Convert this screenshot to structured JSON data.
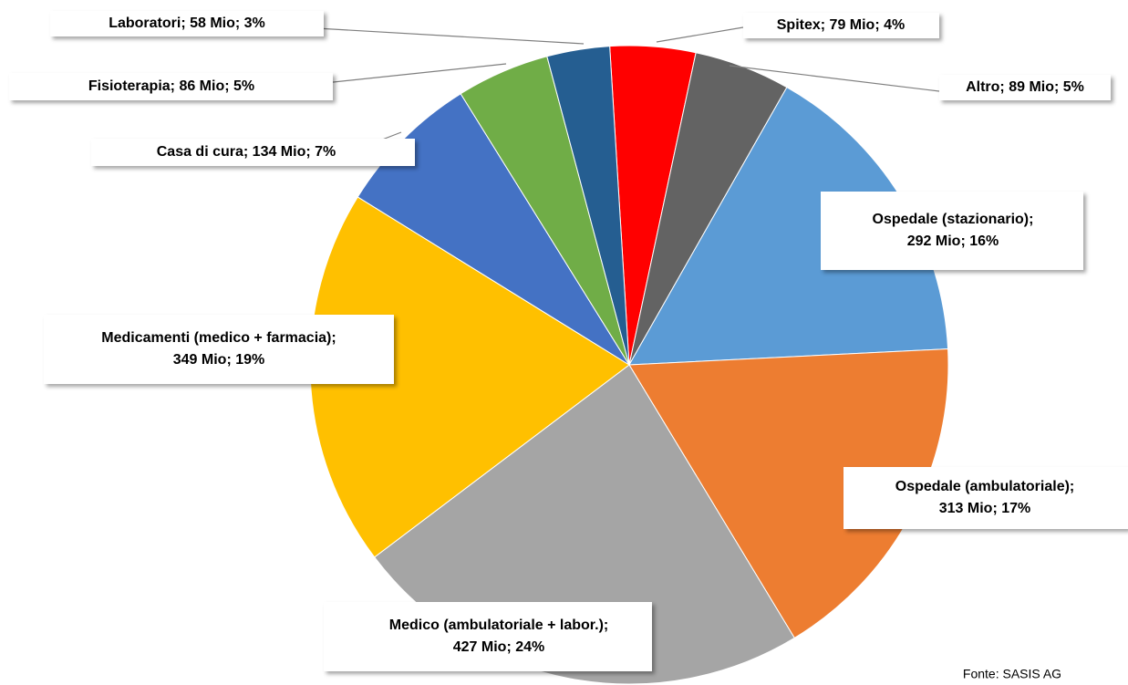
{
  "chart_data": {
    "type": "pie",
    "values": [
      79,
      89,
      292,
      313,
      427,
      349,
      134,
      86,
      58
    ],
    "value_labels": [
      [
        "Spitex; 79 Mio; 4%"
      ],
      [
        "Altro; 89 Mio; 5%"
      ],
      [
        "Ospedale (stazionario);",
        "292 Mio; 16%"
      ],
      [
        "Ospedale (ambulatoriale);",
        "313 Mio; 17%"
      ],
      [
        "Medico (ambulatoriale + labor.);",
        "427 Mio; 24%"
      ],
      [
        "Medicamenti (medico + farmacia);",
        "349 Mio; 19%"
      ],
      [
        "Casa di cura; 134 Mio; 7%"
      ],
      [
        "Fisioterapia; 86 Mio; 5%"
      ],
      [
        "Laboratori; 58 Mio; 3%"
      ]
    ],
    "colors": [
      "#ff0000",
      "#636363",
      "#5b9bd5",
      "#ed7d31",
      "#a5a5a5",
      "#ffc000",
      "#4472c4",
      "#70ad47",
      "#255e91"
    ],
    "source": "Fonte: SASIS AG"
  }
}
